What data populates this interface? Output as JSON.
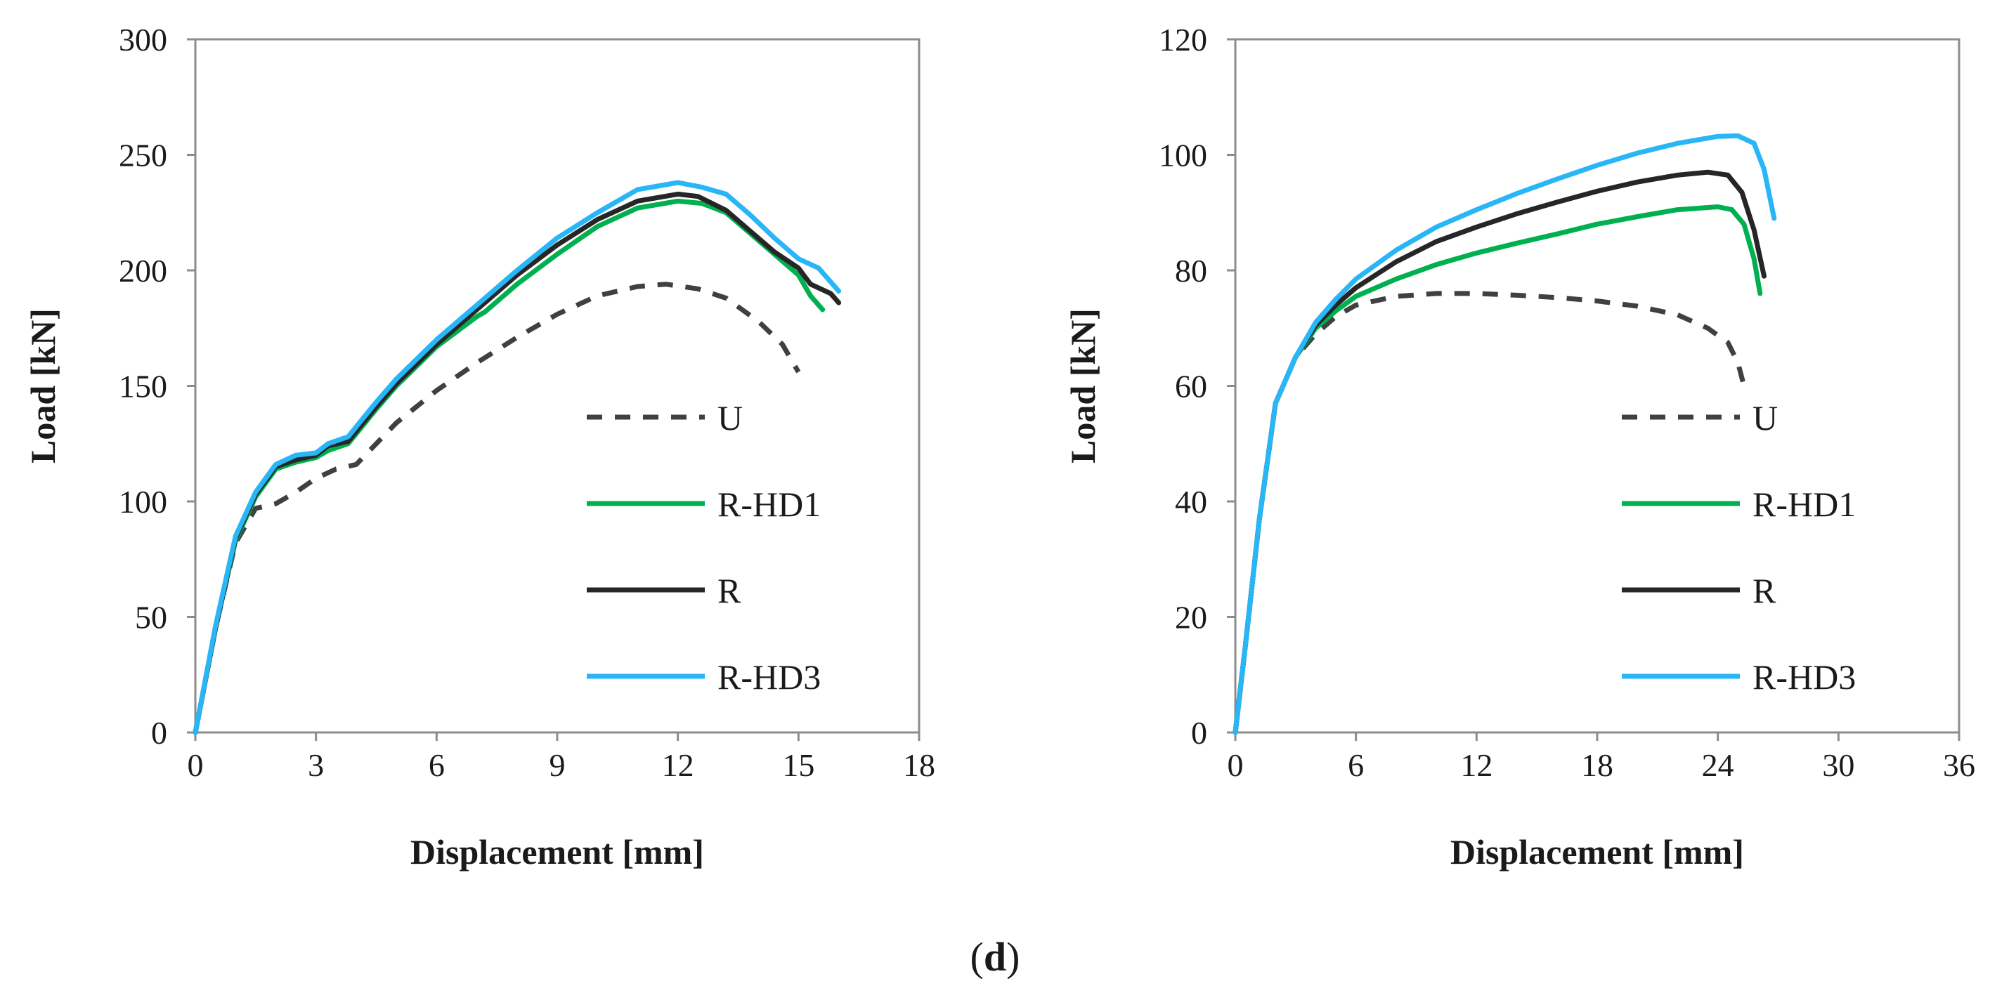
{
  "panel_label": "(d)",
  "panel_label_parts": {
    "open": "(",
    "letter": "d",
    "close": ")"
  },
  "chart_data": [
    {
      "type": "line",
      "title": "",
      "xlabel": "Displacement [mm]",
      "ylabel": "Load [kN]",
      "xlim": [
        0,
        18
      ],
      "ylim": [
        0,
        300
      ],
      "x_ticks": [
        0,
        3,
        6,
        9,
        12,
        15,
        18
      ],
      "y_ticks": [
        0,
        50,
        100,
        150,
        200,
        250,
        300
      ],
      "grid": false,
      "legend_position": "bottom-right",
      "series": [
        {
          "name": "U",
          "color": "#404040",
          "dash": "dashed",
          "points": [
            [
              0,
              0
            ],
            [
              0.5,
              45
            ],
            [
              1.0,
              82
            ],
            [
              1.5,
              97
            ],
            [
              2.0,
              99
            ],
            [
              2.5,
              104
            ],
            [
              3.0,
              110
            ],
            [
              3.5,
              114
            ],
            [
              4.0,
              116
            ],
            [
              4.5,
              125
            ],
            [
              5.0,
              134
            ],
            [
              6.0,
              148
            ],
            [
              7.0,
              160
            ],
            [
              8.0,
              171
            ],
            [
              9.0,
              181
            ],
            [
              10.0,
              189
            ],
            [
              11.0,
              193
            ],
            [
              11.7,
              194
            ],
            [
              12.5,
              192
            ],
            [
              13.2,
              188
            ],
            [
              14.0,
              178
            ],
            [
              14.6,
              168
            ],
            [
              15.0,
              156
            ]
          ]
        },
        {
          "name": "R-HD1",
          "color": "#00b050",
          "dash": "solid",
          "points": [
            [
              0,
              0
            ],
            [
              0.5,
              45
            ],
            [
              1.0,
              83
            ],
            [
              1.5,
              102
            ],
            [
              2.0,
              114
            ],
            [
              2.5,
              117
            ],
            [
              3.0,
              119
            ],
            [
              3.3,
              122
            ],
            [
              3.8,
              125
            ],
            [
              4.5,
              140
            ],
            [
              5.0,
              150
            ],
            [
              6.0,
              167
            ],
            [
              7.0,
              180
            ],
            [
              7.2,
              182
            ],
            [
              7.6,
              188
            ],
            [
              8.0,
              194
            ],
            [
              9.0,
              207
            ],
            [
              10.0,
              219
            ],
            [
              11.0,
              227
            ],
            [
              12.0,
              230
            ],
            [
              12.6,
              229
            ],
            [
              13.2,
              225
            ],
            [
              13.8,
              216
            ],
            [
              14.4,
              207
            ],
            [
              15.0,
              198
            ],
            [
              15.3,
              189
            ],
            [
              15.6,
              183
            ]
          ]
        },
        {
          "name": "R",
          "color": "#262626",
          "dash": "solid",
          "points": [
            [
              0,
              0
            ],
            [
              0.5,
              45
            ],
            [
              1.0,
              84
            ],
            [
              1.5,
              103
            ],
            [
              2.0,
              115
            ],
            [
              2.5,
              118
            ],
            [
              3.0,
              120
            ],
            [
              3.3,
              124
            ],
            [
              3.8,
              126
            ],
            [
              4.5,
              141
            ],
            [
              5.0,
              151
            ],
            [
              6.0,
              168
            ],
            [
              7.0,
              183
            ],
            [
              8.0,
              198
            ],
            [
              9.0,
              211
            ],
            [
              10.0,
              222
            ],
            [
              11.0,
              230
            ],
            [
              12.0,
              233
            ],
            [
              12.5,
              232
            ],
            [
              13.2,
              226
            ],
            [
              13.8,
              217
            ],
            [
              14.4,
              208
            ],
            [
              15.0,
              201
            ],
            [
              15.3,
              194
            ],
            [
              15.8,
              190
            ],
            [
              16.0,
              186
            ]
          ]
        },
        {
          "name": "R-HD3",
          "color": "#29b6f6",
          "dash": "solid",
          "points": [
            [
              0,
              0
            ],
            [
              0.5,
              46
            ],
            [
              1.0,
              85
            ],
            [
              1.5,
              104
            ],
            [
              2.0,
              116
            ],
            [
              2.5,
              120
            ],
            [
              3.0,
              121
            ],
            [
              3.3,
              125
            ],
            [
              3.8,
              128
            ],
            [
              4.5,
              143
            ],
            [
              5.0,
              153
            ],
            [
              6.0,
              170
            ],
            [
              7.0,
              185
            ],
            [
              8.0,
              200
            ],
            [
              9.0,
              214
            ],
            [
              10.0,
              225
            ],
            [
              11.0,
              235
            ],
            [
              12.0,
              238
            ],
            [
              12.6,
              236
            ],
            [
              13.2,
              233
            ],
            [
              13.8,
              224
            ],
            [
              14.4,
              214
            ],
            [
              15.0,
              205
            ],
            [
              15.5,
              201
            ],
            [
              16.0,
              191
            ]
          ]
        }
      ]
    },
    {
      "type": "line",
      "title": "",
      "xlabel": "Displacement [mm]",
      "ylabel": "Load [kN]",
      "xlim": [
        0,
        36
      ],
      "ylim": [
        0,
        120
      ],
      "x_ticks": [
        0,
        6,
        12,
        18,
        24,
        30,
        36
      ],
      "y_ticks": [
        0,
        20,
        40,
        60,
        80,
        100,
        120
      ],
      "grid": false,
      "legend_position": "bottom-right",
      "series": [
        {
          "name": "U",
          "color": "#404040",
          "dash": "dashed",
          "points": [
            [
              0,
              0
            ],
            [
              0.5,
              15
            ],
            [
              1.2,
              37
            ],
            [
              2.0,
              57
            ],
            [
              3.0,
              65
            ],
            [
              4.0,
              69
            ],
            [
              5.0,
              72
            ],
            [
              6.0,
              74
            ],
            [
              8.0,
              75.5
            ],
            [
              10.0,
              76
            ],
            [
              12.0,
              76
            ],
            [
              14.0,
              75.7
            ],
            [
              16.0,
              75.3
            ],
            [
              18.0,
              74.7
            ],
            [
              20.0,
              73.8
            ],
            [
              22.0,
              72.3
            ],
            [
              23.5,
              70
            ],
            [
              24.5,
              67.5
            ],
            [
              25.0,
              64
            ],
            [
              25.3,
              60
            ]
          ]
        },
        {
          "name": "R-HD1",
          "color": "#00b050",
          "dash": "solid",
          "points": [
            [
              0,
              0
            ],
            [
              0.5,
              15
            ],
            [
              1.2,
              37
            ],
            [
              2.0,
              57
            ],
            [
              3.0,
              65
            ],
            [
              4.0,
              70
            ],
            [
              5.0,
              73
            ],
            [
              6.0,
              75.5
            ],
            [
              8.0,
              78.5
            ],
            [
              10.0,
              81
            ],
            [
              12.0,
              83
            ],
            [
              14.0,
              84.7
            ],
            [
              16.0,
              86.3
            ],
            [
              18.0,
              88
            ],
            [
              20.0,
              89.3
            ],
            [
              22.0,
              90.5
            ],
            [
              24.0,
              91
            ],
            [
              24.7,
              90.5
            ],
            [
              25.3,
              88
            ],
            [
              25.8,
              82
            ],
            [
              26.1,
              76
            ]
          ]
        },
        {
          "name": "R",
          "color": "#262626",
          "dash": "solid",
          "points": [
            [
              0,
              0
            ],
            [
              0.5,
              15
            ],
            [
              1.2,
              37
            ],
            [
              2.0,
              57
            ],
            [
              3.0,
              65
            ],
            [
              4.0,
              70.5
            ],
            [
              5.0,
              74
            ],
            [
              6.0,
              77
            ],
            [
              8.0,
              81.5
            ],
            [
              10.0,
              85
            ],
            [
              12.0,
              87.5
            ],
            [
              14.0,
              89.8
            ],
            [
              16.0,
              91.8
            ],
            [
              18.0,
              93.7
            ],
            [
              20.0,
              95.3
            ],
            [
              22.0,
              96.5
            ],
            [
              23.5,
              97
            ],
            [
              24.5,
              96.5
            ],
            [
              25.2,
              93.5
            ],
            [
              25.8,
              87
            ],
            [
              26.3,
              79
            ]
          ]
        },
        {
          "name": "R-HD3",
          "color": "#29b6f6",
          "dash": "solid",
          "points": [
            [
              0,
              0
            ],
            [
              0.5,
              15
            ],
            [
              1.2,
              37
            ],
            [
              2.0,
              57
            ],
            [
              3.0,
              65
            ],
            [
              4.0,
              71
            ],
            [
              5.0,
              75
            ],
            [
              6.0,
              78.5
            ],
            [
              8.0,
              83.5
            ],
            [
              10.0,
              87.5
            ],
            [
              12.0,
              90.5
            ],
            [
              14.0,
              93.3
            ],
            [
              16.0,
              95.8
            ],
            [
              18.0,
              98.2
            ],
            [
              20.0,
              100.3
            ],
            [
              22.0,
              102
            ],
            [
              24.0,
              103.2
            ],
            [
              25.0,
              103.3
            ],
            [
              25.8,
              102
            ],
            [
              26.3,
              97.5
            ],
            [
              26.8,
              89
            ]
          ]
        }
      ]
    }
  ]
}
